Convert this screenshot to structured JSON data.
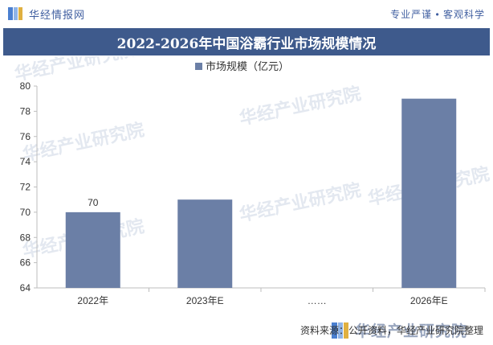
{
  "header": {
    "brand": "华经情报网",
    "slogan": "专业严谨 • 客观科学"
  },
  "title": "2022-2026年中国浴霸行业市场规模情况",
  "chart_data": {
    "type": "bar",
    "categories": [
      "2022年",
      "2023年E",
      "……",
      "2026年E"
    ],
    "series": [
      {
        "name": "市场规模（亿元）",
        "values": [
          70,
          71,
          null,
          79
        ],
        "color": "#6b7fa6"
      }
    ],
    "data_labels": [
      "70",
      "",
      "",
      ""
    ],
    "ylim": [
      64,
      80
    ],
    "yticks": [
      "64",
      "66",
      "68",
      "70",
      "72",
      "74",
      "76",
      "78",
      "80"
    ],
    "legend": "top-center",
    "grid": false
  },
  "watermark": "华经产业研究院",
  "footer": {
    "brand": "华经产业研究院",
    "source": "资料来源：公开资料，华经产业研究院整理"
  }
}
